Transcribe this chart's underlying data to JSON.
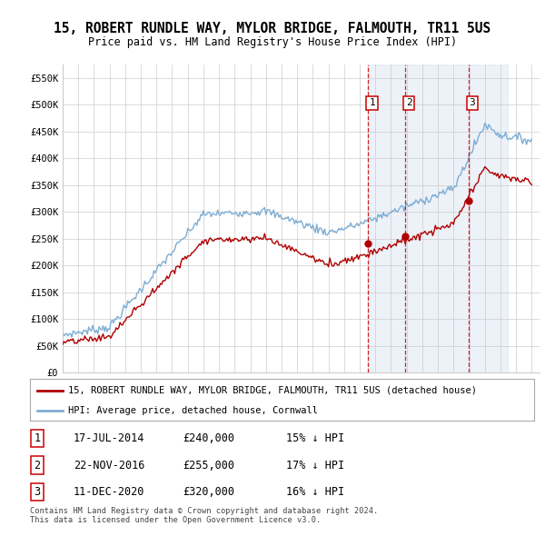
{
  "title": "15, ROBERT RUNDLE WAY, MYLOR BRIDGE, FALMOUTH, TR11 5US",
  "subtitle": "Price paid vs. HM Land Registry's House Price Index (HPI)",
  "ylim": [
    0,
    575000
  ],
  "yticks": [
    0,
    50000,
    100000,
    150000,
    200000,
    250000,
    300000,
    350000,
    400000,
    450000,
    500000,
    550000
  ],
  "ytick_labels": [
    "£0",
    "£50K",
    "£100K",
    "£150K",
    "£200K",
    "£250K",
    "£300K",
    "£350K",
    "£400K",
    "£450K",
    "£500K",
    "£550K"
  ],
  "hpi_color": "#7eadd4",
  "price_color": "#b00000",
  "vline_color": "#cc0000",
  "sale_bg_color": "#d6e4f0",
  "transactions": [
    {
      "date_num": 2014.54,
      "price": 240000,
      "label": "1",
      "date_str": "17-JUL-2014",
      "pct": "15% ↓ HPI"
    },
    {
      "date_num": 2016.9,
      "price": 255000,
      "label": "2",
      "date_str": "22-NOV-2016",
      "pct": "17% ↓ HPI"
    },
    {
      "date_num": 2020.95,
      "price": 320000,
      "label": "3",
      "date_str": "11-DEC-2020",
      "pct": "16% ↓ HPI"
    }
  ],
  "legend_line1": "15, ROBERT RUNDLE WAY, MYLOR BRIDGE, FALMOUTH, TR11 5US (detached house)",
  "legend_line2": "HPI: Average price, detached house, Cornwall",
  "footnote": "Contains HM Land Registry data © Crown copyright and database right 2024.\nThis data is licensed under the Open Government Licence v3.0.",
  "table_rows": [
    [
      "1",
      "17-JUL-2014",
      "£240,000",
      "15% ↓ HPI"
    ],
    [
      "2",
      "22-NOV-2016",
      "£255,000",
      "17% ↓ HPI"
    ],
    [
      "3",
      "11-DEC-2020",
      "£320,000",
      "16% ↓ HPI"
    ]
  ]
}
